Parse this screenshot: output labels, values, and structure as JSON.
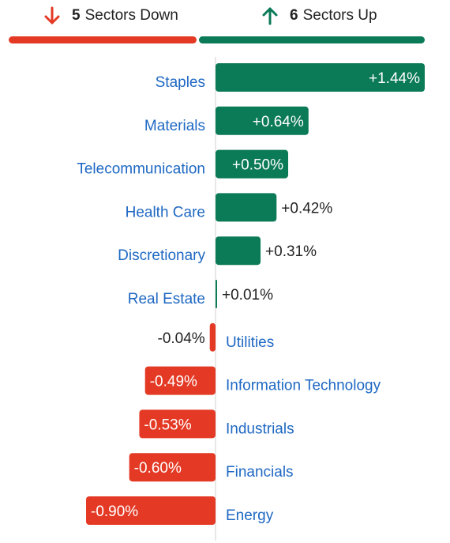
{
  "header": {
    "down": {
      "count": "5",
      "label": "Sectors Down",
      "icon": "arrow-down-icon"
    },
    "up": {
      "count": "6",
      "label": "Sectors Up",
      "icon": "arrow-up-icon"
    }
  },
  "colors": {
    "up": "#0b7a57",
    "down": "#e43a25",
    "label": "#1e68c3",
    "value_text": "#222222",
    "value_text_inside": "#ffffff",
    "axis": "#d0d0d0"
  },
  "chart_data": {
    "type": "bar",
    "orientation": "horizontal",
    "unit": "%",
    "categories": [
      "Staples",
      "Materials",
      "Telecommunication",
      "Health Care",
      "Discretionary",
      "Real Estate",
      "Utilities",
      "Information Technology",
      "Industrials",
      "Financials",
      "Energy"
    ],
    "values": [
      1.44,
      0.64,
      0.5,
      0.42,
      0.31,
      0.01,
      -0.04,
      -0.49,
      -0.53,
      -0.6,
      -0.9
    ],
    "value_labels": [
      "+1.44%",
      "+0.64%",
      "+0.50%",
      "+0.42%",
      "+0.31%",
      "+0.01%",
      "-0.04%",
      "-0.49%",
      "-0.53%",
      "-0.60%",
      "-0.90%"
    ],
    "label_inside_bar": [
      true,
      true,
      true,
      false,
      false,
      false,
      false,
      true,
      true,
      true,
      true
    ],
    "xlim": [
      -0.9,
      1.44
    ]
  }
}
